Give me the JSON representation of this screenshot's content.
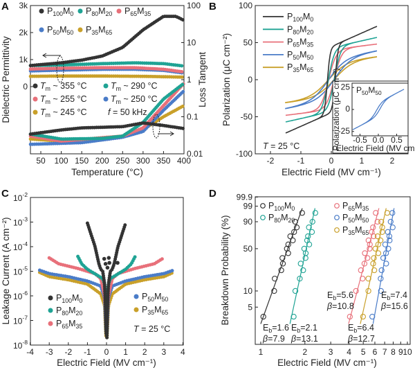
{
  "colors": {
    "P100M0": "#333333",
    "P80M20": "#1fa394",
    "P65M35": "#e8707a",
    "P50M50": "#4a7cc8",
    "P35M65": "#c9a02a"
  },
  "chart_data": [
    {
      "panel_label": "A",
      "type": "scatter",
      "xlabel": "Temperature (°C)",
      "ylabel_left": "Dielectric Permittivity",
      "ylabel_right": "Loss Tangent",
      "xlim": [
        25,
        400
      ],
      "x_ticks": [
        "50",
        "100",
        "150",
        "200",
        "250",
        "300",
        "350",
        "400"
      ],
      "y_left_ticks": [
        "0",
        "1k",
        "2k",
        "3k"
      ],
      "y_left_range": [
        0,
        3000
      ],
      "y_right_scale": "log",
      "y_right_ticks": [
        "0.01",
        "0.1",
        "1",
        "10",
        "100"
      ],
      "y_right_range": [
        0.01,
        100
      ],
      "tm_symbol": "T",
      "tm_sub": "m",
      "frequency": {
        "symbol": "f",
        "text": " = 50 kHz"
      },
      "series": [
        {
          "label": [
            "P",
            "100",
            "M",
            "0"
          ],
          "key": "P100M0",
          "tm": " ~ 355 °C",
          "permittivity": [
            [
              25,
              780
            ],
            [
              100,
              880
            ],
            [
              150,
              980
            ],
            [
              200,
              1130
            ],
            [
              250,
              1450
            ],
            [
              300,
              2100
            ],
            [
              350,
              2600
            ],
            [
              380,
              2600
            ],
            [
              400,
              2450
            ]
          ],
          "loss_tangent": [
            [
              25,
              0.034
            ],
            [
              100,
              0.044
            ],
            [
              150,
              0.05
            ],
            [
              250,
              0.054
            ],
            [
              300,
              0.068
            ],
            [
              350,
              0.058
            ],
            [
              400,
              0.048
            ]
          ]
        },
        {
          "label": [
            "P",
            "80",
            "M",
            "20"
          ],
          "key": "P80M20",
          "tm": " ~ 290 °C",
          "permittivity": [
            [
              25,
              780
            ],
            [
              100,
              800
            ],
            [
              200,
              850
            ],
            [
              280,
              880
            ],
            [
              350,
              850
            ],
            [
              400,
              760
            ]
          ],
          "loss_tangent": [
            [
              25,
              0.034
            ],
            [
              100,
              0.025
            ],
            [
              200,
              0.026
            ],
            [
              250,
              0.03
            ],
            [
              300,
              0.07
            ],
            [
              350,
              0.3
            ],
            [
              400,
              0.8
            ]
          ]
        },
        {
          "label": [
            "P",
            "65",
            "M",
            "35"
          ],
          "key": "P65M35",
          "tm": " ~ 255 °C",
          "permittivity": [
            [
              25,
              650
            ],
            [
              100,
              680
            ],
            [
              200,
              700
            ],
            [
              280,
              700
            ],
            [
              350,
              640
            ],
            [
              400,
              540
            ]
          ],
          "loss_tangent": [
            [
              25,
              0.03
            ],
            [
              100,
              0.022
            ],
            [
              250,
              0.03
            ],
            [
              300,
              0.05
            ],
            [
              350,
              0.2
            ],
            [
              400,
              0.8
            ]
          ]
        },
        {
          "label": [
            "P",
            "50",
            "M",
            "50"
          ],
          "key": "P50M50",
          "tm": " ~ 250 °C",
          "permittivity": [
            [
              25,
              580
            ],
            [
              100,
              610
            ],
            [
              200,
              640
            ],
            [
              280,
              640
            ],
            [
              350,
              600
            ],
            [
              400,
              500
            ]
          ],
          "loss_tangent": [
            [
              25,
              0.018
            ],
            [
              150,
              0.02
            ],
            [
              250,
              0.028
            ],
            [
              300,
              0.04
            ],
            [
              350,
              0.15
            ],
            [
              400,
              0.5
            ]
          ]
        },
        {
          "label": [
            "P",
            "35",
            "M",
            "65"
          ],
          "key": "P35M65",
          "tm": " ~ 245 °C",
          "permittivity": [
            [
              25,
              380
            ],
            [
              100,
              390
            ],
            [
              200,
              390
            ],
            [
              300,
              380
            ],
            [
              400,
              350
            ]
          ],
          "loss_tangent": [
            [
              25,
              0.025
            ],
            [
              100,
              0.022
            ],
            [
              250,
              0.03
            ],
            [
              300,
              0.045
            ],
            [
              350,
              0.1
            ],
            [
              400,
              0.2
            ]
          ]
        }
      ]
    },
    {
      "panel_label": "B",
      "type": "line",
      "xlabel": "Electric Field (MV cm⁻¹)",
      "ylabel": "Polarization (μC cm⁻²)",
      "xlim": [
        -2.5,
        2.5
      ],
      "ylim": [
        -100,
        100
      ],
      "x_ticks": [
        "-2",
        "-1",
        "0",
        "1",
        "2"
      ],
      "y_ticks": [
        "-100",
        "-50",
        "0",
        "50",
        "100"
      ],
      "annotation": {
        "symbol": "T",
        "text": " = 25 °C"
      },
      "series": [
        {
          "label": [
            "P",
            "100",
            "M",
            "0"
          ],
          "key": "P100M0",
          "Emax": 1.5,
          "Pmax": 72,
          "Pr": 40,
          "Ec": 0.13
        },
        {
          "label": [
            "P",
            "80",
            "M",
            "20"
          ],
          "key": "P80M20",
          "Emax": 1.5,
          "Pmax": 57,
          "Pr": 20,
          "Ec": 0.1
        },
        {
          "label": [
            "P",
            "65",
            "M",
            "35"
          ],
          "key": "P65M35",
          "Emax": 1.5,
          "Pmax": 48,
          "Pr": 14,
          "Ec": 0.09
        },
        {
          "label": [
            "P",
            "50",
            "M",
            "50"
          ],
          "key": "P50M50",
          "Emax": 1.5,
          "Pmax": 39,
          "Pr": 5,
          "Ec": 0.1
        },
        {
          "label": [
            "P",
            "35",
            "M",
            "65"
          ],
          "key": "P35M65",
          "Emax": 1.5,
          "Pmax": 31,
          "Pr": 4,
          "Ec": 0.1
        }
      ],
      "inset": {
        "label": [
          "P",
          "50",
          "M",
          "50"
        ],
        "key": "P50M50",
        "xlabel": "Electric Field (MV cm⁻¹)",
        "ylabel": "Polarization (μC cm⁻²)",
        "x_ticks": [
          "-0.5",
          "0.0",
          "0.5"
        ],
        "y_ticks": [
          "-25",
          "0",
          "25"
        ],
        "Emax": 0.7,
        "Pmax": 23,
        "Pr": 2.5,
        "Ec": 0.05
      }
    },
    {
      "panel_label": "C",
      "type": "scatter",
      "xlabel": "Electric Field (MV cm⁻¹)",
      "ylabel": "Leakage Current (A cm⁻²)",
      "xlim": [
        -4,
        4
      ],
      "y_scale": "log",
      "ylim": [
        1e-08,
        0.01
      ],
      "x_ticks": [
        "-4",
        "-3",
        "-2",
        "-1",
        "0",
        "1",
        "2",
        "3",
        "4"
      ],
      "y_tick_base": "10",
      "y_tick_exponents": [
        "-2",
        "-3",
        "-4",
        "-5",
        "-6",
        "-7",
        "-8"
      ],
      "annotation": {
        "symbol": "T",
        "text": " = 25 °C"
      },
      "series": [
        {
          "label": [
            "P",
            "100",
            "M",
            "0"
          ],
          "key": "P100M0",
          "points_abs_field": [
            [
              0.02,
              2e-08
            ],
            [
              0.05,
              3e-07
            ],
            [
              0.1,
              3e-06
            ],
            [
              0.2,
              1e-05
            ],
            [
              0.3,
              1.2e-05
            ],
            [
              0.4,
              2e-05
            ],
            [
              0.6,
              0.0001
            ],
            [
              0.8,
              0.0003
            ],
            [
              1.0,
              0.0009
            ]
          ]
        },
        {
          "label": [
            "P",
            "80",
            "M",
            "20"
          ],
          "key": "P80M20",
          "points_abs_field": [
            [
              0.02,
              2e-07
            ],
            [
              0.05,
              1e-06
            ],
            [
              0.1,
              3e-06
            ],
            [
              0.2,
              5e-06
            ],
            [
              0.5,
              7e-06
            ],
            [
              1.0,
              1.2e-05
            ],
            [
              1.3,
              2e-05
            ],
            [
              1.5,
              4e-05
            ]
          ]
        },
        {
          "label": [
            "P",
            "65",
            "M",
            "35"
          ],
          "key": "P65M35",
          "points_abs_field": [
            [
              0.02,
              5e-08
            ],
            [
              0.05,
              3e-07
            ],
            [
              0.1,
              1e-06
            ],
            [
              0.3,
              5e-06
            ],
            [
              0.6,
              8e-06
            ],
            [
              1.5,
              1.3e-05
            ],
            [
              2.5,
              2e-05
            ],
            [
              3.0,
              3.5e-05
            ]
          ]
        },
        {
          "label": [
            "P",
            "50",
            "M",
            "50"
          ],
          "key": "P50M50",
          "points_abs_field": [
            [
              0.02,
              3e-08
            ],
            [
              0.05,
              1e-07
            ],
            [
              0.1,
              8e-07
            ],
            [
              0.3,
              2.5e-06
            ],
            [
              1,
              4e-06
            ],
            [
              2,
              6e-06
            ],
            [
              3,
              8e-06
            ],
            [
              3.5,
              1.1e-05
            ]
          ]
        },
        {
          "label": [
            "P",
            "35",
            "M",
            "65"
          ],
          "key": "P35M65",
          "points_abs_field": [
            [
              0.02,
              2e-08
            ],
            [
              0.05,
              5e-08
            ],
            [
              0.1,
              4e-07
            ],
            [
              0.3,
              1.2e-06
            ],
            [
              1,
              3e-06
            ],
            [
              2,
              4.5e-06
            ],
            [
              3,
              6e-06
            ],
            [
              3.5,
              9e-06
            ]
          ]
        }
      ]
    },
    {
      "panel_label": "D",
      "type": "scatter",
      "xlabel": "Electric Field (MV cm⁻¹)",
      "ylabel": "Breakdown Probability (%)",
      "x_scale": "log",
      "y_scale": "weibull",
      "x_ticks": [
        "1",
        "2",
        "3",
        "4",
        "5",
        "6",
        "7",
        "8",
        "9",
        "10"
      ],
      "y_ticks": [
        "5",
        "10",
        "50",
        "90",
        "99",
        "99.9"
      ],
      "probabilities_percent": [
        3.3,
        10,
        16.7,
        23.3,
        30,
        36.7,
        43.3,
        50,
        56.7,
        63.3,
        70,
        76.7,
        83.3,
        90,
        96.7
      ],
      "eb_symbol": "E",
      "eb_sub": "b",
      "beta_symbol": "β",
      "series": [
        {
          "label": [
            "P",
            "100",
            "M",
            "0"
          ],
          "key": "P100M0",
          "Eb": "1.6",
          "beta": "7.9"
        },
        {
          "label": [
            "P",
            "80",
            "M",
            "20"
          ],
          "key": "P80M20",
          "Eb": "2.1",
          "beta": "13.1"
        },
        {
          "label": [
            "P",
            "65",
            "M",
            "35"
          ],
          "key": "P65M35",
          "Eb": "5.6",
          "beta": "10.8"
        },
        {
          "label": [
            "P",
            "50",
            "M",
            "50"
          ],
          "key": "P50M50",
          "Eb": "7.4",
          "beta": "15.6"
        },
        {
          "label": [
            "P",
            "35",
            "M",
            "65"
          ],
          "key": "P35M65",
          "Eb": "6.4",
          "beta": "12.7"
        }
      ]
    }
  ]
}
